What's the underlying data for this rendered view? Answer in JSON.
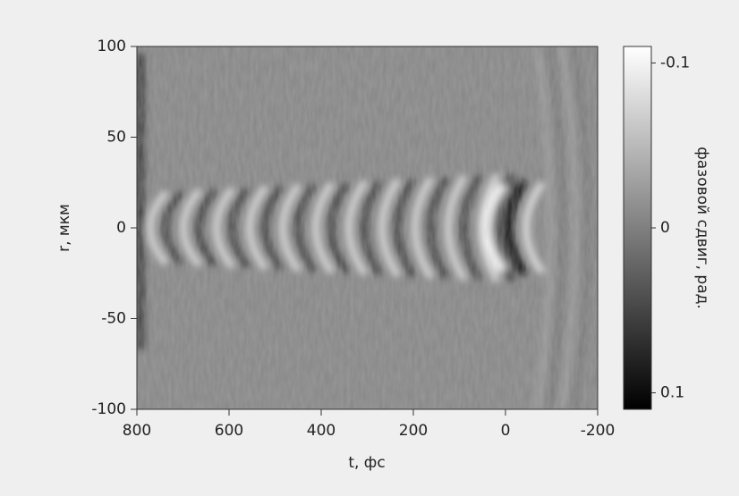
{
  "chart_data": {
    "type": "heatmap",
    "xlabel": "t, фс",
    "ylabel": "r, мкм",
    "xlim": [
      800,
      -200
    ],
    "xticks": [
      800,
      600,
      400,
      200,
      0,
      -200
    ],
    "ylim": [
      -100,
      100
    ],
    "yticks": [
      100,
      50,
      0,
      -50,
      -100
    ],
    "colorbar": {
      "label": "фазовой сдвиг, рад.",
      "lim": [
        0.11,
        -0.11
      ],
      "ticks": [
        -0.1,
        0,
        0.1
      ],
      "colors": [
        "#000000",
        "#ffffff"
      ]
    }
  }
}
